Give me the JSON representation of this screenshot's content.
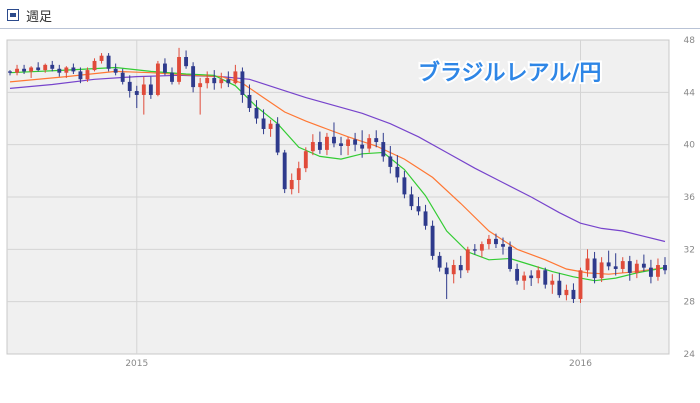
{
  "header": {
    "title": "週足"
  },
  "chart_data": {
    "type": "candlestick",
    "title": "ブラジルレアル/円",
    "ylim": [
      24,
      48
    ],
    "yticks": [
      24,
      28,
      32,
      36,
      40,
      44,
      48
    ],
    "xtick_labels": [
      {
        "label": "2015",
        "index": 18
      },
      {
        "label": "2016",
        "index": 81
      }
    ],
    "grid": true,
    "legend": "none",
    "colors": {
      "up": "#e04b3a",
      "down": "#2e3a8c",
      "ma_short": "#33cc33",
      "ma_mid": "#ff7733",
      "ma_long": "#7744cc",
      "plot_bg": "#f0f0f0",
      "grid": "#d4d4d4",
      "title": "#2e86e6"
    },
    "candles": [
      [
        45.6,
        45.7,
        45.3,
        45.5
      ],
      [
        45.5,
        46.1,
        45.3,
        45.8
      ],
      [
        45.8,
        46.1,
        45.4,
        45.6
      ],
      [
        45.6,
        46.0,
        45.1,
        45.9
      ],
      [
        45.9,
        46.3,
        45.6,
        45.7
      ],
      [
        45.7,
        46.2,
        45.5,
        46.1
      ],
      [
        46.1,
        46.4,
        45.6,
        45.8
      ],
      [
        45.8,
        46.1,
        45.2,
        45.5
      ],
      [
        45.5,
        46.0,
        45.1,
        45.9
      ],
      [
        45.9,
        46.2,
        45.4,
        45.6
      ],
      [
        45.6,
        45.9,
        44.7,
        45.0
      ],
      [
        45.0,
        45.9,
        44.8,
        45.7
      ],
      [
        45.7,
        46.6,
        45.6,
        46.4
      ],
      [
        46.4,
        47.0,
        46.2,
        46.8
      ],
      [
        46.8,
        47.0,
        45.6,
        45.8
      ],
      [
        45.8,
        46.2,
        45.3,
        45.5
      ],
      [
        45.5,
        45.8,
        44.6,
        44.8
      ],
      [
        44.8,
        45.3,
        43.6,
        44.1
      ],
      [
        44.1,
        44.5,
        42.8,
        43.8
      ],
      [
        43.8,
        45.2,
        42.3,
        44.6
      ],
      [
        44.6,
        45.2,
        43.5,
        43.8
      ],
      [
        43.8,
        46.4,
        43.7,
        46.2
      ],
      [
        46.2,
        46.6,
        45.3,
        45.5
      ],
      [
        45.5,
        45.9,
        44.6,
        44.8
      ],
      [
        44.8,
        47.4,
        44.6,
        46.7
      ],
      [
        46.7,
        47.2,
        45.8,
        46.0
      ],
      [
        46.0,
        46.3,
        44.0,
        44.4
      ],
      [
        44.4,
        45.1,
        42.3,
        44.7
      ],
      [
        44.7,
        45.6,
        44.3,
        45.1
      ],
      [
        45.1,
        45.7,
        44.2,
        44.7
      ],
      [
        44.7,
        45.5,
        44.3,
        45.0
      ],
      [
        45.0,
        45.6,
        44.4,
        44.7
      ],
      [
        44.7,
        46.1,
        44.6,
        45.6
      ],
      [
        45.6,
        45.9,
        43.2,
        43.8
      ],
      [
        43.8,
        44.6,
        42.5,
        42.8
      ],
      [
        42.8,
        43.4,
        41.6,
        42.0
      ],
      [
        42.0,
        42.7,
        40.8,
        41.2
      ],
      [
        41.2,
        41.9,
        40.6,
        41.6
      ],
      [
        41.6,
        42.1,
        39.2,
        39.4
      ],
      [
        39.4,
        39.6,
        36.3,
        36.6
      ],
      [
        36.6,
        37.8,
        36.2,
        37.3
      ],
      [
        37.3,
        38.7,
        36.3,
        38.2
      ],
      [
        38.2,
        39.8,
        37.9,
        39.5
      ],
      [
        39.5,
        40.8,
        39.2,
        40.2
      ],
      [
        40.2,
        41.0,
        39.3,
        39.6
      ],
      [
        39.6,
        40.9,
        39.2,
        40.6
      ],
      [
        40.6,
        41.7,
        39.8,
        40.1
      ],
      [
        40.1,
        40.6,
        39.2,
        39.9
      ],
      [
        39.9,
        40.6,
        39.2,
        40.4
      ],
      [
        40.4,
        40.9,
        39.5,
        40.0
      ],
      [
        40.0,
        41.1,
        39.0,
        39.7
      ],
      [
        39.7,
        40.8,
        39.4,
        40.5
      ],
      [
        40.5,
        41.1,
        39.8,
        40.2
      ],
      [
        40.2,
        40.9,
        38.7,
        39.1
      ],
      [
        39.1,
        39.9,
        37.8,
        38.3
      ],
      [
        38.3,
        39.2,
        37.1,
        37.5
      ],
      [
        37.5,
        38.0,
        35.9,
        36.2
      ],
      [
        36.2,
        36.8,
        35.0,
        35.3
      ],
      [
        35.3,
        36.0,
        34.6,
        34.9
      ],
      [
        34.9,
        35.4,
        33.5,
        33.8
      ],
      [
        33.8,
        34.2,
        31.2,
        31.5
      ],
      [
        31.5,
        31.8,
        30.3,
        30.6
      ],
      [
        30.6,
        31.0,
        28.2,
        30.1
      ],
      [
        30.1,
        31.2,
        29.4,
        30.8
      ],
      [
        30.8,
        31.5,
        29.8,
        30.4
      ],
      [
        30.4,
        32.2,
        30.2,
        32.0
      ],
      [
        32.0,
        32.4,
        31.6,
        31.9
      ],
      [
        31.9,
        32.6,
        31.4,
        32.4
      ],
      [
        32.4,
        33.1,
        32.0,
        32.8
      ],
      [
        32.8,
        33.2,
        32.1,
        32.4
      ],
      [
        32.4,
        32.9,
        31.6,
        32.2
      ],
      [
        32.2,
        32.6,
        30.3,
        30.5
      ],
      [
        30.5,
        30.9,
        29.3,
        29.6
      ],
      [
        29.6,
        30.3,
        28.9,
        30.0
      ],
      [
        30.0,
        30.4,
        29.2,
        29.8
      ],
      [
        29.8,
        30.7,
        29.4,
        30.4
      ],
      [
        30.4,
        30.6,
        29.0,
        29.3
      ],
      [
        29.3,
        30.1,
        28.6,
        29.6
      ],
      [
        29.6,
        30.2,
        28.3,
        28.5
      ],
      [
        28.5,
        29.3,
        28.1,
        28.9
      ],
      [
        28.9,
        29.4,
        27.9,
        28.2
      ],
      [
        28.2,
        30.6,
        27.9,
        30.4
      ],
      [
        30.4,
        32.0,
        29.9,
        31.3
      ],
      [
        31.3,
        31.8,
        29.4,
        29.8
      ],
      [
        29.8,
        31.4,
        29.5,
        31.0
      ],
      [
        31.0,
        31.9,
        30.4,
        30.7
      ],
      [
        30.7,
        31.7,
        30.0,
        30.5
      ],
      [
        30.5,
        31.4,
        30.2,
        31.1
      ],
      [
        31.1,
        31.5,
        29.6,
        30.2
      ],
      [
        30.2,
        31.2,
        29.8,
        30.9
      ],
      [
        30.9,
        31.6,
        30.3,
        30.6
      ],
      [
        30.6,
        31.2,
        29.4,
        29.9
      ],
      [
        29.9,
        31.3,
        29.6,
        30.8
      ],
      [
        30.8,
        31.4,
        30.1,
        30.4
      ]
    ],
    "ma_short": [
      [
        0,
        45.5
      ],
      [
        8,
        45.7
      ],
      [
        15,
        45.9
      ],
      [
        20,
        45.6
      ],
      [
        25,
        45.4
      ],
      [
        29,
        45.3
      ],
      [
        32,
        44.5
      ],
      [
        35,
        42.9
      ],
      [
        38,
        41.6
      ],
      [
        41,
        39.8
      ],
      [
        44,
        39.1
      ],
      [
        47,
        38.9
      ],
      [
        50,
        39.3
      ],
      [
        53,
        39.4
      ],
      [
        56,
        38.1
      ],
      [
        59,
        36.1
      ],
      [
        62,
        33.4
      ],
      [
        65,
        31.8
      ],
      [
        68,
        31.2
      ],
      [
        71,
        31.3
      ],
      [
        74,
        30.8
      ],
      [
        77,
        30.3
      ],
      [
        80,
        29.9
      ],
      [
        83,
        29.6
      ],
      [
        86,
        29.8
      ],
      [
        89,
        30.2
      ],
      [
        93,
        30.6
      ]
    ],
    "ma_mid": [
      [
        0,
        44.8
      ],
      [
        8,
        45.2
      ],
      [
        15,
        45.6
      ],
      [
        20,
        45.5
      ],
      [
        26,
        45.3
      ],
      [
        30,
        45.2
      ],
      [
        33,
        44.7
      ],
      [
        36,
        43.6
      ],
      [
        39,
        42.5
      ],
      [
        42,
        41.8
      ],
      [
        45,
        41.2
      ],
      [
        48,
        40.6
      ],
      [
        52,
        39.9
      ],
      [
        56,
        38.9
      ],
      [
        60,
        37.5
      ],
      [
        64,
        35.5
      ],
      [
        68,
        33.4
      ],
      [
        72,
        32.0
      ],
      [
        76,
        31.2
      ],
      [
        79,
        30.5
      ],
      [
        82,
        30.2
      ],
      [
        85,
        30.1
      ],
      [
        89,
        30.3
      ],
      [
        93,
        30.6
      ]
    ],
    "ma_long": [
      [
        0,
        44.3
      ],
      [
        6,
        44.6
      ],
      [
        12,
        45.0
      ],
      [
        18,
        45.2
      ],
      [
        24,
        45.3
      ],
      [
        30,
        45.2
      ],
      [
        34,
        45.0
      ],
      [
        38,
        44.3
      ],
      [
        42,
        43.6
      ],
      [
        46,
        43.0
      ],
      [
        50,
        42.4
      ],
      [
        54,
        41.6
      ],
      [
        58,
        40.6
      ],
      [
        62,
        39.4
      ],
      [
        66,
        38.2
      ],
      [
        70,
        37.1
      ],
      [
        74,
        36.0
      ],
      [
        78,
        34.8
      ],
      [
        81,
        34.0
      ],
      [
        84,
        33.6
      ],
      [
        87,
        33.4
      ],
      [
        90,
        33.0
      ],
      [
        93,
        32.6
      ]
    ]
  }
}
